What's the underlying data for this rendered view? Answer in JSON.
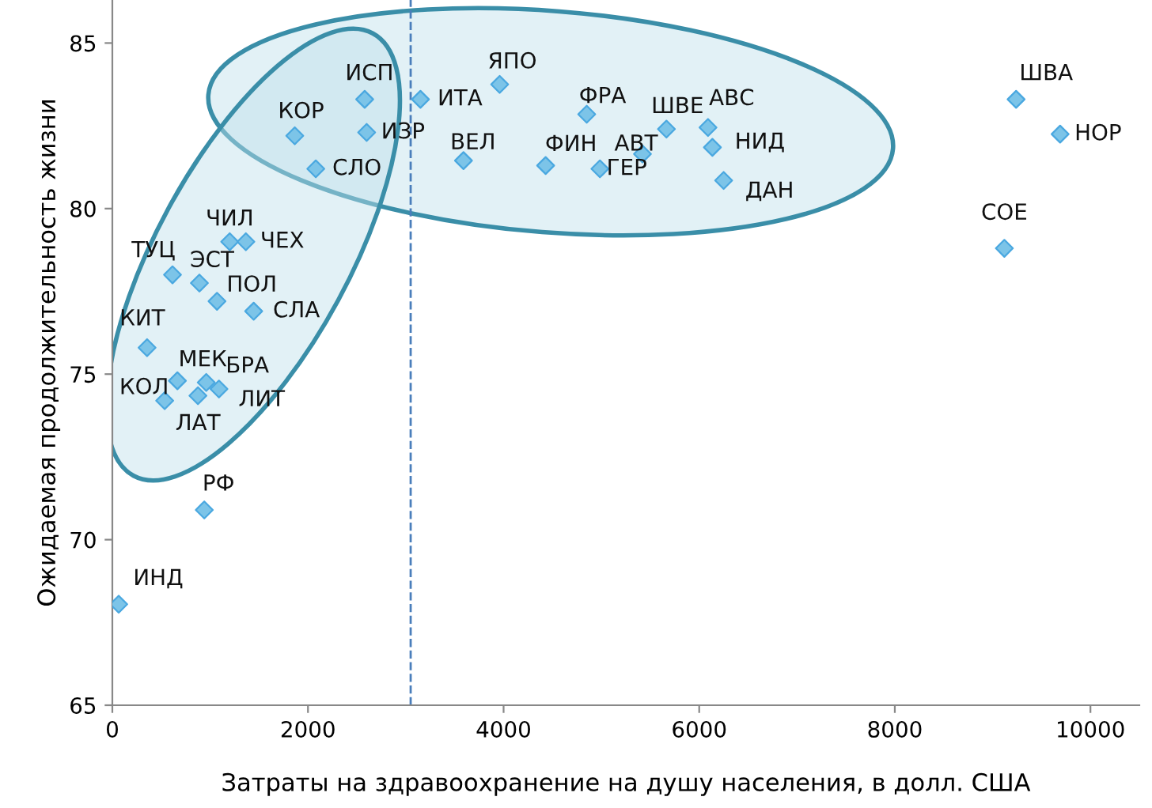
{
  "chart_data": {
    "type": "scatter",
    "xlabel": "Затраты на здравоохранение на душу населения, в долл. США",
    "ylabel": "Ожидаемая продолжительность жизни",
    "x": [
      65,
      940,
      535,
      875,
      665,
      960,
      1090,
      355,
      615,
      890,
      1070,
      1445,
      1200,
      1365,
      1865,
      2580,
      2600,
      2080,
      3150,
      3960,
      3590,
      4430,
      4850,
      4985,
      5420,
      5665,
      6090,
      6135,
      6250,
      9240,
      9690,
      9120
    ],
    "values": [
      68.05,
      70.9,
      74.2,
      74.35,
      74.8,
      74.75,
      74.55,
      75.8,
      78.0,
      77.75,
      77.2,
      76.9,
      79.0,
      79.0,
      82.2,
      83.3,
      82.3,
      81.2,
      83.3,
      83.75,
      81.45,
      81.3,
      82.85,
      81.2,
      81.65,
      82.4,
      82.45,
      81.85,
      80.85,
      83.3,
      82.25,
      78.8
    ],
    "color": "#7cc4e8",
    "marker": "diamond",
    "annotations": [
      {
        "text": "ИНД",
        "x": 65,
        "y": 68.05
      },
      {
        "text": "РФ",
        "x": 940,
        "y": 70.9
      },
      {
        "text": "КОЛ",
        "x": 535,
        "y": 74.2
      },
      {
        "text": "ЛАТ",
        "x": 875,
        "y": 74.35
      },
      {
        "text": "МЕК",
        "x": 665,
        "y": 74.8
      },
      {
        "text": "БРА",
        "x": 960,
        "y": 74.75
      },
      {
        "text": "ЛИТ",
        "x": 1090,
        "y": 74.55
      },
      {
        "text": "КИТ",
        "x": 355,
        "y": 75.8
      },
      {
        "text": "ТУЦ",
        "x": 615,
        "y": 78.0
      },
      {
        "text": "ЭСТ",
        "x": 890,
        "y": 77.75
      },
      {
        "text": "ПОЛ",
        "x": 1070,
        "y": 77.2
      },
      {
        "text": "СЛА",
        "x": 1445,
        "y": 76.9
      },
      {
        "text": "ЧИЛ",
        "x": 1200,
        "y": 79.0
      },
      {
        "text": "ЧЕХ",
        "x": 1365,
        "y": 79.0
      },
      {
        "text": "КОР",
        "x": 1865,
        "y": 82.2
      },
      {
        "text": "ИСП",
        "x": 2580,
        "y": 83.3
      },
      {
        "text": "ИЗР",
        "x": 2600,
        "y": 82.3
      },
      {
        "text": "СЛО",
        "x": 2080,
        "y": 81.2
      },
      {
        "text": "ИТА",
        "x": 3150,
        "y": 83.3
      },
      {
        "text": "ЯПО",
        "x": 3960,
        "y": 83.75
      },
      {
        "text": "ВЕЛ",
        "x": 3590,
        "y": 81.45
      },
      {
        "text": "ФИН",
        "x": 4430,
        "y": 81.3
      },
      {
        "text": "ФРА",
        "x": 4850,
        "y": 82.85
      },
      {
        "text": "ГЕР",
        "x": 4985,
        "y": 81.2
      },
      {
        "text": "АВТ",
        "x": 5420,
        "y": 81.65
      },
      {
        "text": "ШВЕ",
        "x": 5665,
        "y": 82.4
      },
      {
        "text": "АВС",
        "x": 6090,
        "y": 82.45
      },
      {
        "text": "НИД",
        "x": 6135,
        "y": 81.85
      },
      {
        "text": "ДАН",
        "x": 6250,
        "y": 80.85
      },
      {
        "text": "ШВА",
        "x": 9240,
        "y": 83.3
      },
      {
        "text": "НОР",
        "x": 9690,
        "y": 82.25
      },
      {
        "text": "СОЕ",
        "x": 9120,
        "y": 78.8
      }
    ],
    "ref_lines": [
      {
        "axis": "x",
        "value": 3050,
        "color": "#4a7ebb",
        "line_style": "dashed"
      }
    ],
    "xlim": [
      0,
      10500
    ],
    "ylim": [
      65,
      86.3
    ],
    "xticks": [
      0,
      2000,
      4000,
      6000,
      8000,
      10000
    ],
    "yticks": [
      65,
      70,
      75,
      80,
      85
    ],
    "grid": false
  }
}
